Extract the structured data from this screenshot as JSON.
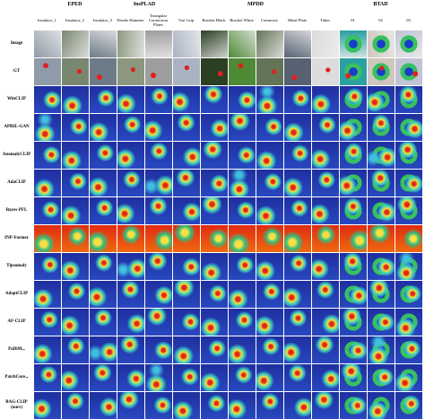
{
  "groups": [
    "EPED",
    "InsPLAD",
    "MPDD",
    "BTAD"
  ],
  "columns": [
    "Insulator_1",
    "Insulator_2",
    "Insulator_3",
    "Fender Hammer",
    "Triangular Connection Plates",
    "Vari Grip",
    "Bracket Black",
    "Bracket White",
    "Connector",
    "Metal Plate",
    "Tubes",
    "01",
    "02",
    "03"
  ],
  "rows": [
    {
      "label": "Image"
    },
    {
      "label": "GT"
    },
    {
      "label": "WinCLIP"
    },
    {
      "label": "APRIL-GAN"
    },
    {
      "label": "AnomalyCLIP"
    },
    {
      "label": "AdaCLIP"
    },
    {
      "label": "Bayes-PFL"
    },
    {
      "label": "INP-Former"
    },
    {
      "label": "Tipsomaly"
    },
    {
      "label": "AdaptCLIP"
    },
    {
      "label": "AF-CLIP"
    },
    {
      "label": "PaDiM",
      "sup": "**"
    },
    {
      "label": "PatchCore",
      "sup": "**"
    },
    {
      "label": "BAG-CLIP (ours)"
    }
  ]
}
